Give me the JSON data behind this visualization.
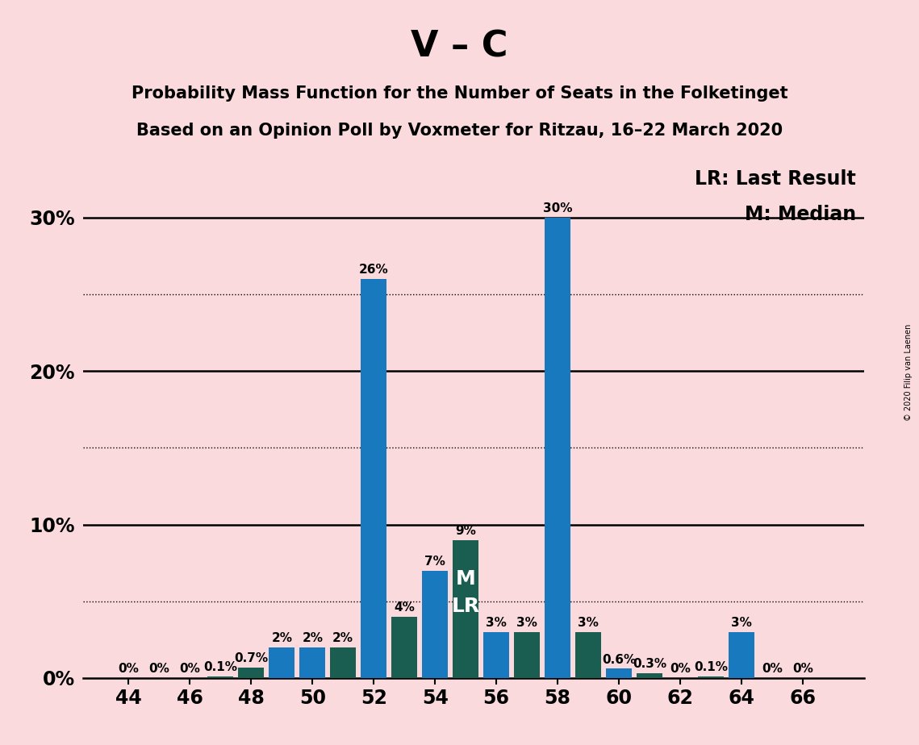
{
  "title_main": "V – C",
  "title_sub1": "Probability Mass Function for the Number of Seats in the Folketinget",
  "title_sub2": "Based on an Opinion Poll by Voxmeter for Ritzau, 16–22 March 2020",
  "copyright": "© 2020 Filip van Laenen",
  "legend_lr": "LR: Last Result",
  "legend_m": "M: Median",
  "background_color": "#fadadd",
  "bar_color_blue": "#1879bf",
  "bar_color_teal": "#1a5e52",
  "seats": [
    44,
    45,
    46,
    47,
    48,
    49,
    50,
    51,
    52,
    53,
    54,
    55,
    56,
    57,
    58,
    59,
    60,
    61,
    62,
    63,
    64,
    65,
    66,
    67
  ],
  "probabilities": [
    0.0,
    0.0,
    0.0,
    0.001,
    0.007,
    0.02,
    0.02,
    0.02,
    0.26,
    0.04,
    0.07,
    0.09,
    0.03,
    0.03,
    0.3,
    0.03,
    0.006,
    0.003,
    0.0,
    0.001,
    0.03,
    0.0,
    0.0,
    0.0
  ],
  "labels": [
    "0%",
    "0%",
    "0%",
    "0.1%",
    "0.7%",
    "2%",
    "2%",
    "2%",
    "26%",
    "4%",
    "7%",
    "9%",
    "3%",
    "3%",
    "30%",
    "3%",
    "0.6%",
    "0.3%",
    "0%",
    "0.1%",
    "3%",
    "0%",
    "0%",
    ""
  ],
  "colors": [
    "blue",
    "blue",
    "blue",
    "teal",
    "teal",
    "blue",
    "blue",
    "teal",
    "blue",
    "teal",
    "blue",
    "teal",
    "blue",
    "teal",
    "blue",
    "teal",
    "blue",
    "teal",
    "blue",
    "teal",
    "blue",
    "teal",
    "blue",
    "teal"
  ],
  "median_seat": 55,
  "last_result_seat": 55,
  "xtick_positions": [
    44,
    46,
    48,
    50,
    52,
    54,
    56,
    58,
    60,
    62,
    64,
    66
  ],
  "xtick_labels": [
    "44",
    "46",
    "48",
    "50",
    "52",
    "54",
    "56",
    "58",
    "60",
    "62",
    "64",
    "66"
  ],
  "yticks": [
    0.0,
    0.1,
    0.2,
    0.3
  ],
  "ytick_labels": [
    "0%",
    "10%",
    "20%",
    "30%"
  ],
  "dotted_lines": [
    0.05,
    0.15,
    0.25
  ],
  "solid_lines": [
    0.1,
    0.2,
    0.3
  ],
  "ylim": [
    0,
    0.335
  ],
  "xlim": [
    42.5,
    68.0
  ],
  "bar_width": 0.85,
  "label_fontsize": 11,
  "tick_fontsize": 17,
  "title_fontsize": 32,
  "subtitle_fontsize": 15,
  "legend_fontsize": 17
}
